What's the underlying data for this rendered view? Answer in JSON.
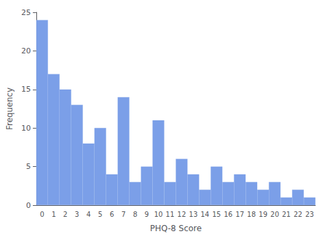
{
  "chart_data": {
    "type": "bar",
    "categories": [
      "0",
      "1",
      "2",
      "3",
      "4",
      "5",
      "6",
      "7",
      "8",
      "9",
      "10",
      "11",
      "12",
      "13",
      "14",
      "15",
      "16",
      "17",
      "18",
      "19",
      "20",
      "21",
      "22",
      "23"
    ],
    "values": [
      24,
      17,
      15,
      13,
      8,
      10,
      4,
      14,
      3,
      5,
      11,
      3,
      6,
      4,
      2,
      5,
      3,
      4,
      3,
      2,
      3,
      1,
      2,
      1
    ],
    "color": "#7b9fe8",
    "xlabel": "PHQ-8 Score",
    "ylabel": "Frequency",
    "ylim": [
      0,
      25
    ],
    "yticks": [
      0,
      5,
      10,
      15,
      20,
      25
    ],
    "grid": false
  }
}
